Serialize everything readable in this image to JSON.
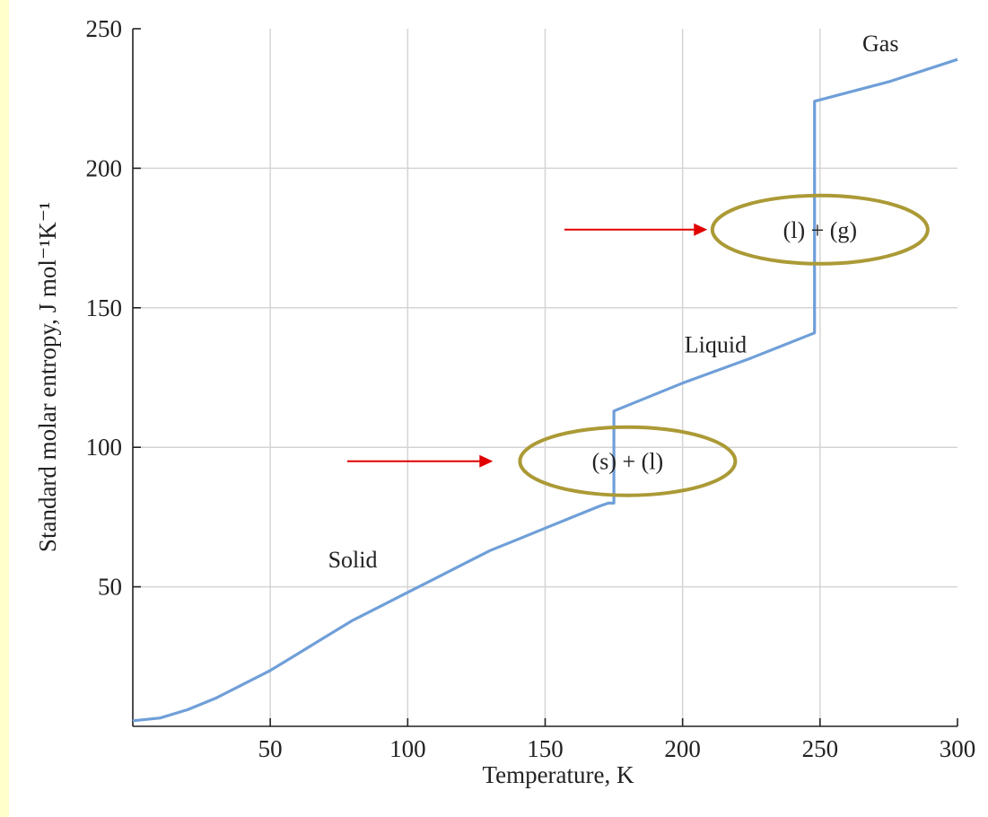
{
  "chart_data": {
    "type": "line",
    "xlabel": "Temperature, K",
    "ylabel": "Standard molar entropy, J mol⁻¹K⁻¹",
    "xlim": [
      0,
      300
    ],
    "ylim": [
      0,
      250
    ],
    "x_ticks": [
      50,
      100,
      150,
      200,
      250,
      300
    ],
    "y_ticks": [
      50,
      100,
      150,
      200,
      250
    ],
    "grid": true,
    "line_color": "#6f9fd8",
    "series": [
      {
        "points": [
          [
            0,
            2
          ],
          [
            10,
            3
          ],
          [
            20,
            6
          ],
          [
            30,
            10
          ],
          [
            40,
            15
          ],
          [
            50,
            20
          ],
          [
            60,
            26
          ],
          [
            70,
            32
          ],
          [
            80,
            38
          ],
          [
            90,
            43
          ],
          [
            100,
            48
          ],
          [
            110,
            53
          ],
          [
            120,
            58
          ],
          [
            130,
            63
          ],
          [
            140,
            67
          ],
          [
            150,
            71
          ],
          [
            160,
            75
          ],
          [
            170,
            79
          ],
          [
            173,
            80
          ],
          [
            175,
            80
          ],
          [
            175,
            113
          ],
          [
            200,
            123
          ],
          [
            225,
            132
          ],
          [
            248,
            141
          ],
          [
            248,
            224
          ],
          [
            275,
            231
          ],
          [
            300,
            239
          ]
        ]
      }
    ],
    "region_labels": [
      {
        "text": "Solid",
        "x": 80,
        "y": 57
      },
      {
        "text": "Liquid",
        "x": 212,
        "y": 134
      },
      {
        "text": "Gas",
        "x": 272,
        "y": 242
      }
    ],
    "annotations": [
      {
        "text": "(s) + (l)",
        "x": 180,
        "y": 95,
        "arrow_from_x": 78,
        "arrow_to_x": 131,
        "arrow_y": 95,
        "ellipse_color": "#ab9a36"
      },
      {
        "text": "(l) + (g)",
        "x": 250,
        "y": 178,
        "arrow_from_x": 157,
        "arrow_to_x": 209,
        "arrow_y": 178,
        "ellipse_color": "#ab9a36"
      }
    ],
    "arrow_color": "#e00000"
  }
}
